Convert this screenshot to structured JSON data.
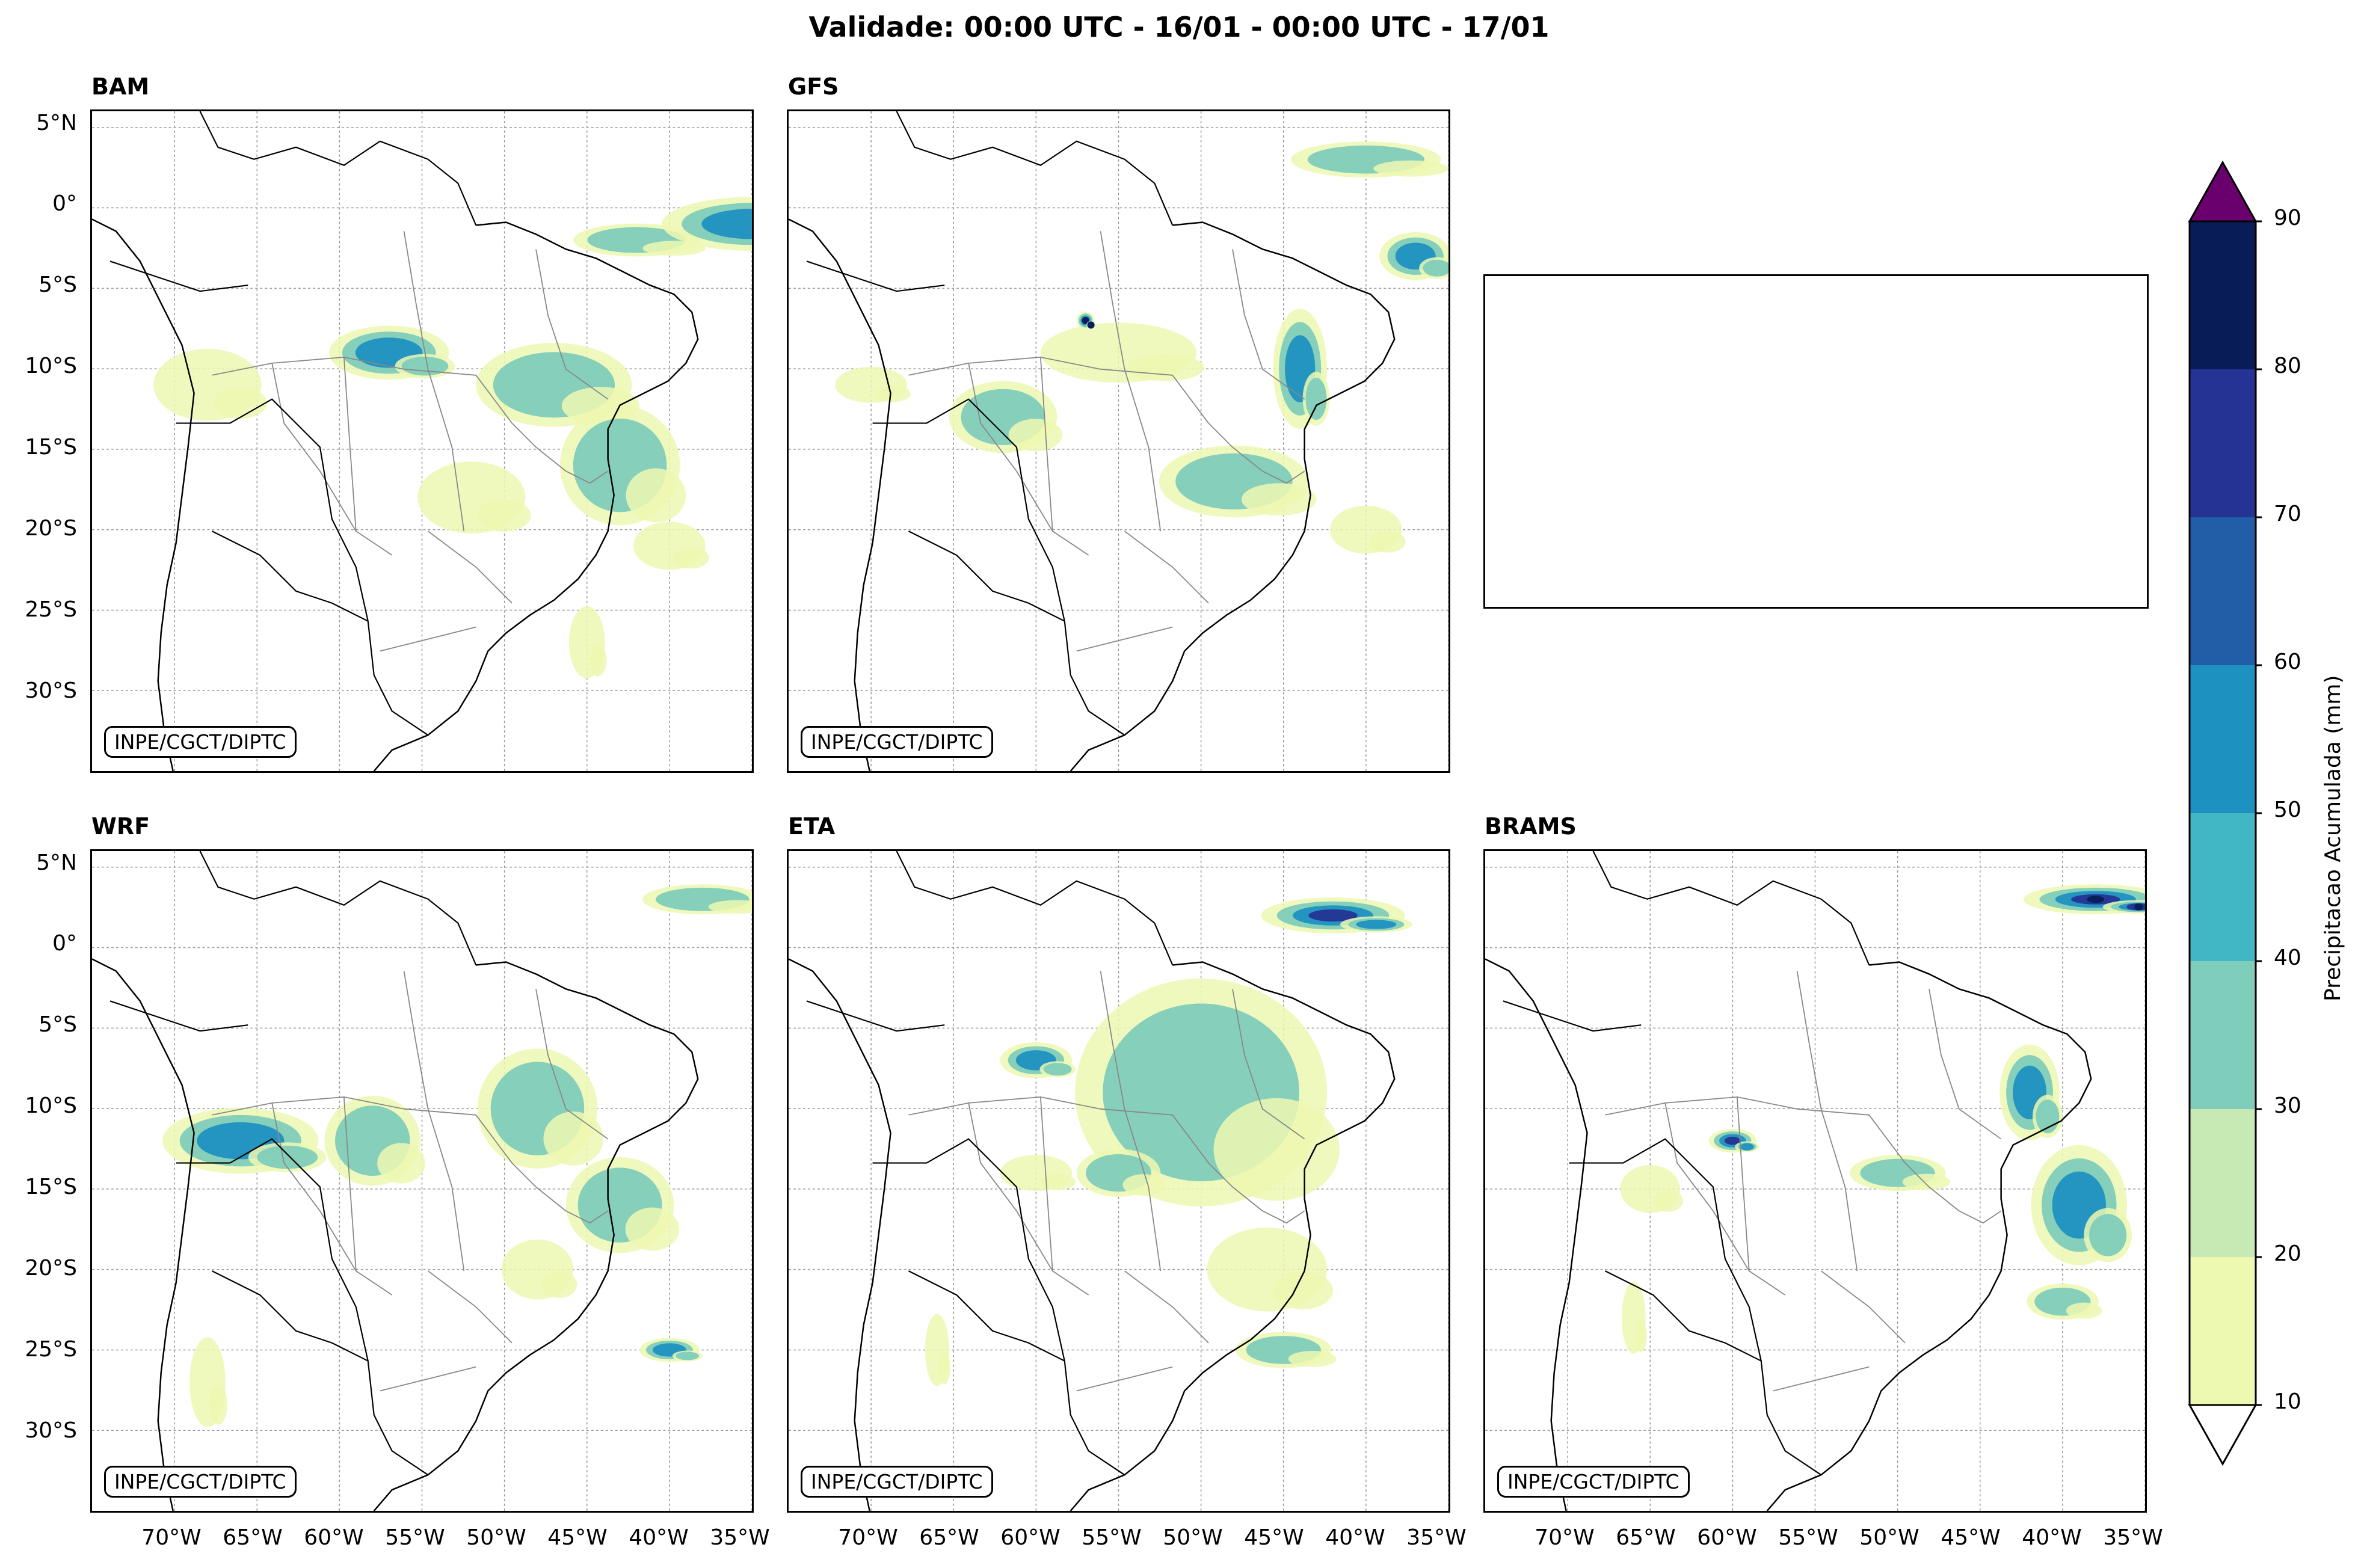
{
  "title": "Validade: 00:00 UTC - 16/01 - 00:00 UTC - 17/01",
  "credit": "INPE/CGCT/DIPTC",
  "panels": [
    {
      "name": "BAM"
    },
    {
      "name": "GFS"
    },
    {
      "name": "WRF"
    },
    {
      "name": "ETA"
    },
    {
      "name": "BRAMS"
    }
  ],
  "lat_labels": [
    "5°N",
    "0°",
    "5°S",
    "10°S",
    "15°S",
    "20°S",
    "25°S",
    "30°S"
  ],
  "lon_labels": [
    "70°W",
    "65°W",
    "60°W",
    "55°W",
    "50°W",
    "45°W",
    "40°W",
    "35°W"
  ],
  "colorbar": {
    "label": "Precipitacao Acumulada (mm)",
    "ticks": [
      "10",
      "20",
      "30",
      "40",
      "50",
      "60",
      "70",
      "80",
      "90"
    ],
    "colors": [
      "#edf8b1",
      "#c7e9b4",
      "#7fcdbb",
      "#41b6c4",
      "#1d91c0",
      "#225ea8",
      "#253494",
      "#081d58"
    ],
    "over_color": "#6a006e",
    "under_color": "#ffffff"
  }
}
